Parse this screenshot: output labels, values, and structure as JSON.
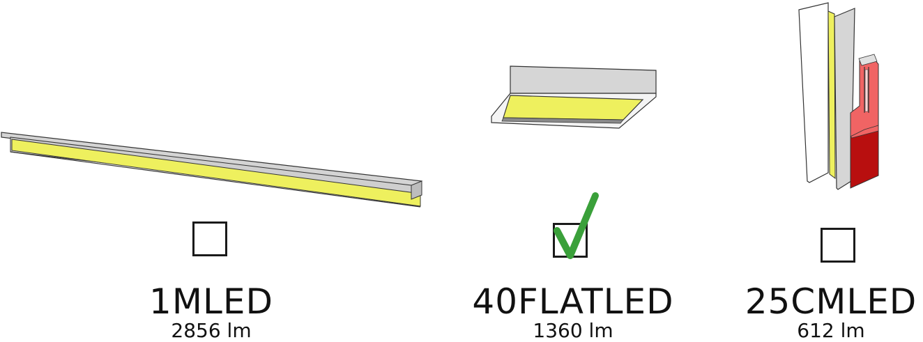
{
  "products": [
    {
      "name": "1MLED",
      "flux": "2856 lm",
      "checked": false,
      "image": "long-linear-led-profile"
    },
    {
      "name": "40FLATLED",
      "flux": "1360 lm",
      "checked": true,
      "image": "flat-square-led-panel"
    },
    {
      "name": "25CMLED",
      "flux": "612 lm",
      "checked": false,
      "image": "vertical-led-post"
    }
  ],
  "colors": {
    "led_yellow": "#eef05e",
    "housing_gray": "#d4d4d4",
    "outline": "#333333",
    "shadow_gray": "#8a8a8a",
    "red_light": "#f06464",
    "red_dark": "#b80f0f",
    "check_green": "#3aa03a"
  }
}
